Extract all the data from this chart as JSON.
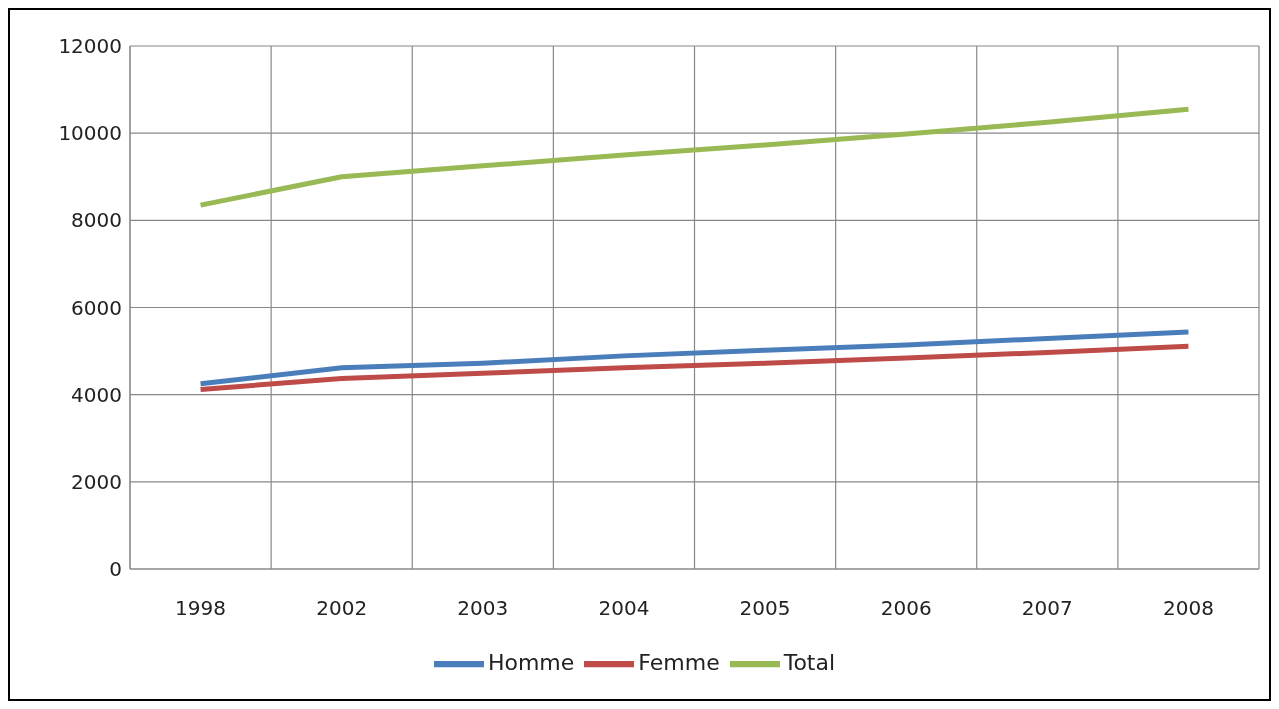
{
  "chart_data": {
    "type": "line",
    "categories": [
      "1998",
      "2002",
      "2003",
      "2004",
      "2005",
      "2006",
      "2007",
      "2008"
    ],
    "series": [
      {
        "name": "Homme",
        "color": "#4a7ebb",
        "values": [
          4250,
          4620,
          4720,
          4890,
          5020,
          5140,
          5290,
          5440
        ]
      },
      {
        "name": "Femme",
        "color": "#be4b48",
        "values": [
          4120,
          4370,
          4490,
          4620,
          4720,
          4840,
          4970,
          5110
        ]
      },
      {
        "name": "Total",
        "color": "#98b954",
        "values": [
          8350,
          9000,
          9250,
          9500,
          9730,
          9980,
          10250,
          10550
        ]
      }
    ],
    "ylim": [
      0,
      12000
    ],
    "yticks": [
      0,
      2000,
      4000,
      6000,
      8000,
      10000,
      12000
    ],
    "grid": true,
    "legend": "bottom",
    "marker": "none",
    "line_style": "solid"
  }
}
